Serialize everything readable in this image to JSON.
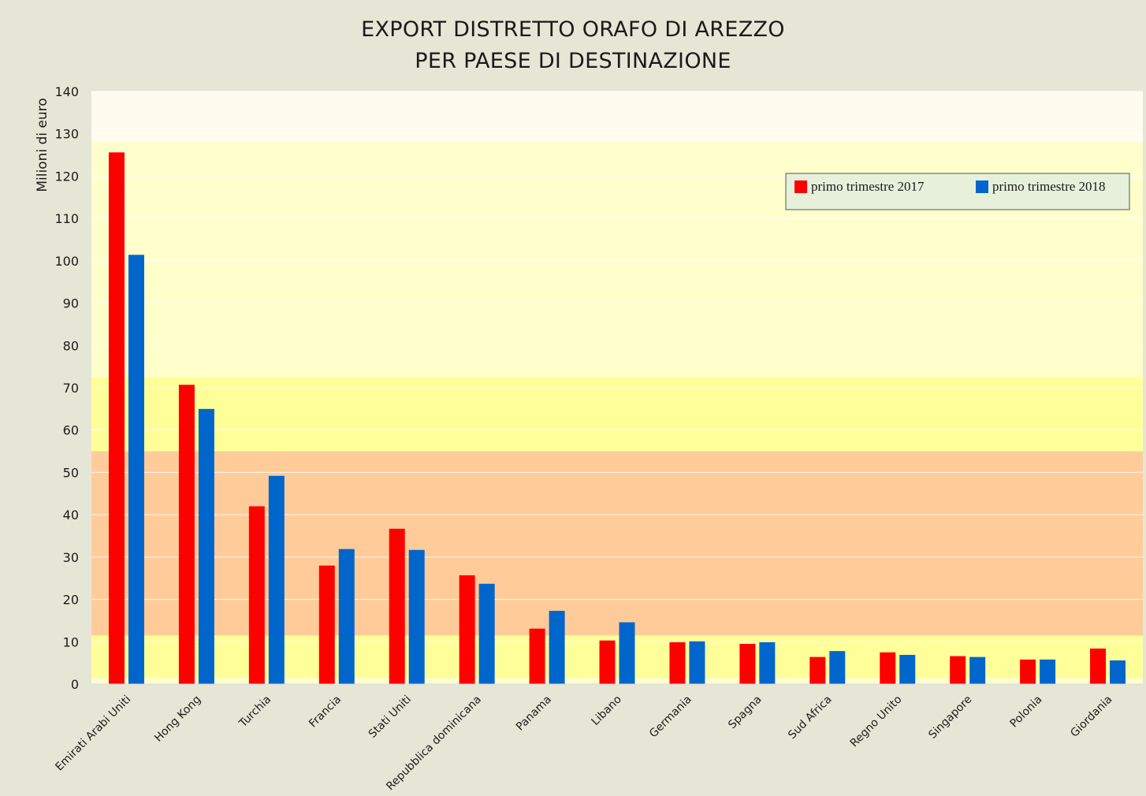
{
  "chart_data": {
    "type": "bar",
    "title": "EXPORT DISTRETTO  ORAFO DI AREZZO",
    "subtitle": "PER PAESE DI DESTINAZIONE",
    "ylabel": "Milioni di euro",
    "xlabel": "",
    "ylim": [
      0,
      140
    ],
    "yticks": [
      0,
      10,
      20,
      30,
      40,
      50,
      60,
      70,
      80,
      90,
      100,
      110,
      120,
      130,
      140
    ],
    "legend_position": "top-right",
    "categories": [
      "Emirati Arabi Uniti",
      "Hong Kong",
      "Turchia",
      "Francia",
      "Stati Uniti",
      "Repubblica dominicana",
      "Panama",
      "Libano",
      "Germania",
      "Spagna",
      "Sud Africa",
      "Regno Unito",
      "Singapore",
      "Polonia",
      "Giordania"
    ],
    "series": [
      {
        "name": "primo trimestre 2017",
        "color": "#ff0000",
        "values": [
          125.6,
          70.7,
          42.0,
          28.0,
          36.7,
          25.7,
          13.1,
          10.3,
          9.9,
          9.5,
          6.4,
          7.5,
          6.6,
          5.8,
          8.4
        ]
      },
      {
        "name": "primo trimestre 2018",
        "color": "#0066cc",
        "values": [
          101.4,
          65.0,
          49.2,
          31.9,
          31.7,
          23.7,
          17.3,
          14.6,
          10.1,
          9.9,
          7.8,
          6.9,
          6.4,
          5.8,
          5.6
        ]
      }
    ],
    "background_bands": [
      {
        "from": 0,
        "to": 1.5,
        "color": "#ffffcc"
      },
      {
        "from": 1.5,
        "to": 11.5,
        "color": "#ffff99"
      },
      {
        "from": 11.5,
        "to": 55,
        "color": "#ffcc99"
      },
      {
        "from": 55,
        "to": 72.5,
        "color": "#ffff99"
      },
      {
        "from": 72.5,
        "to": 128,
        "color": "#ffffcc"
      },
      {
        "from": 128,
        "to": 140,
        "color": "#fffbef"
      }
    ],
    "grid": true
  }
}
